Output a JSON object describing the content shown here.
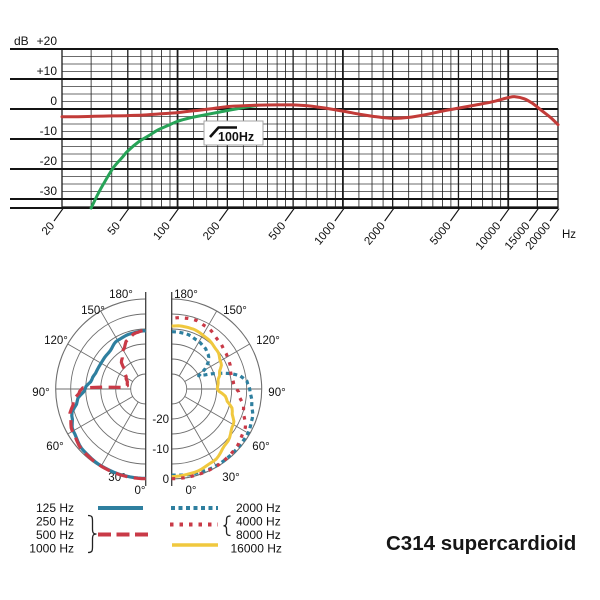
{
  "title": "C314 supercardioid",
  "freq_chart": {
    "y_axis_unit": "dB",
    "x_axis_unit": "Hz",
    "filter_annotation": "100Hz"
  },
  "polar": {
    "angle_values": [
      180,
      150,
      120,
      90,
      60,
      30,
      0
    ],
    "angle_labels": [
      "180°",
      "150°",
      "120°",
      "90°",
      "60°",
      "30°",
      "0°"
    ],
    "db_values": [
      -20,
      -10,
      0
    ],
    "db_labels": [
      "-20",
      "-10",
      "0"
    ]
  },
  "legend": {
    "groups": [
      {
        "labels": [
          "125 Hz"
        ],
        "color": "#2e7f9f",
        "dash": "solid"
      },
      {
        "labels": [
          "250 Hz",
          "500 Hz",
          "1000 Hz"
        ],
        "color": "#c93a47",
        "dash": "long-dash",
        "brace": "right"
      },
      {
        "labels": [
          "2000 Hz"
        ],
        "color": "#2e7f9f",
        "dash": "dotted"
      },
      {
        "labels": [
          "4000 Hz",
          "8000 Hz"
        ],
        "color": "#c93a47",
        "dash": "sparse-dotted",
        "brace": "left"
      },
      {
        "labels": [
          "16000 Hz"
        ],
        "color": "#f0c83e",
        "dash": "solid"
      }
    ]
  },
  "chart_data": [
    {
      "type": "line",
      "id": "frequency-response",
      "x_scale": "log",
      "xlim": [
        20,
        20000
      ],
      "ylim": [
        -33,
        20
      ],
      "xlabel": "Hz",
      "ylabel": "dB",
      "grid": true,
      "x_ticks": [
        {
          "v": 20,
          "label": "20"
        },
        {
          "v": 50,
          "label": "50"
        },
        {
          "v": 100,
          "label": "100"
        },
        {
          "v": 200,
          "label": "200"
        },
        {
          "v": 500,
          "label": "500"
        },
        {
          "v": 1000,
          "label": "1000"
        },
        {
          "v": 2000,
          "label": "2000"
        },
        {
          "v": 5000,
          "label": "5000"
        },
        {
          "v": 10000,
          "label": "10000"
        },
        {
          "v": 15000,
          "label": "15000"
        },
        {
          "v": 20000,
          "label": "20000"
        }
      ],
      "y_ticks": [
        {
          "v": 20,
          "label": "+20"
        },
        {
          "v": 10,
          "label": "+10"
        },
        {
          "v": 0,
          "label": "0"
        },
        {
          "v": -10,
          "label": "-10"
        },
        {
          "v": -20,
          "label": "-20"
        },
        {
          "v": -30,
          "label": "-30"
        }
      ],
      "annotation": {
        "text": "100Hz",
        "meaning": "bass-cut filter symbol"
      },
      "series": [
        {
          "name": "frequency response",
          "color": "#c23b38",
          "width": 3,
          "points": [
            [
              20,
              -2.6
            ],
            [
              25,
              -2.55
            ],
            [
              31.5,
              -2.45
            ],
            [
              40,
              -2.3
            ],
            [
              50,
              -2.2
            ],
            [
              63,
              -2.0
            ],
            [
              80,
              -1.6
            ],
            [
              100,
              -1.2
            ],
            [
              125,
              -0.6
            ],
            [
              160,
              0.1
            ],
            [
              200,
              0.8
            ],
            [
              250,
              1.1
            ],
            [
              315,
              1.3
            ],
            [
              400,
              1.35
            ],
            [
              500,
              1.35
            ],
            [
              630,
              1.0
            ],
            [
              800,
              0.2
            ],
            [
              1000,
              -0.7
            ],
            [
              1250,
              -1.7
            ],
            [
              1600,
              -2.6
            ],
            [
              2000,
              -3.1
            ],
            [
              2500,
              -2.8
            ],
            [
              3150,
              -1.9
            ],
            [
              4000,
              -0.7
            ],
            [
              5000,
              0.3
            ],
            [
              6300,
              1.3
            ],
            [
              8000,
              2.4
            ],
            [
              10000,
              3.8
            ],
            [
              11000,
              4.1
            ],
            [
              12500,
              3.4
            ],
            [
              14000,
              1.9
            ],
            [
              16000,
              -0.6
            ],
            [
              18000,
              -2.8
            ],
            [
              20000,
              -5.2
            ]
          ]
        },
        {
          "name": "bass-cut filter engaged",
          "color": "#27a357",
          "width": 3,
          "points": [
            [
              30,
              -33
            ],
            [
              33,
              -28.3
            ],
            [
              36.5,
              -24
            ],
            [
              41,
              -19.5
            ],
            [
              46.5,
              -16
            ],
            [
              50,
              -14
            ],
            [
              58,
              -11
            ],
            [
              67,
              -8.9
            ],
            [
              76,
              -7
            ],
            [
              90,
              -5.2
            ],
            [
              100,
              -4.1
            ],
            [
              118,
              -3
            ],
            [
              148,
              -1.9
            ],
            [
              180,
              -1.0
            ],
            [
              210,
              -0.3
            ],
            [
              240,
              0.3
            ],
            [
              270,
              0.8
            ],
            [
              300,
              1.1
            ]
          ]
        }
      ]
    },
    {
      "type": "polar-half",
      "id": "polar-low-frequencies",
      "side": "left",
      "rings_db": [
        0,
        -5,
        -10,
        -15,
        -20,
        -25
      ],
      "angle_ticks_deg": [
        0,
        30,
        60,
        90,
        120,
        150,
        180
      ],
      "series": [
        {
          "name": "125 Hz",
          "color": "#2e7f9f",
          "dash": null,
          "width": 3.2,
          "points": [
            [
              0,
              -0.2
            ],
            [
              15,
              -0.25
            ],
            [
              30,
              -0.4
            ],
            [
              45,
              -0.8
            ],
            [
              60,
              -2.1
            ],
            [
              70,
              -3.8
            ],
            [
              80,
              -6.8
            ],
            [
              90,
              -9.8
            ],
            [
              100,
              -11.8
            ],
            [
              110,
              -12.6
            ],
            [
              120,
              -12.8
            ],
            [
              135,
              -12.7
            ],
            [
              150,
              -11.3
            ],
            [
              165,
              -10.9
            ],
            [
              180,
              -10.6
            ]
          ]
        },
        {
          "name": "250/500/1000 Hz",
          "color": "#c93a47",
          "dash": [
            12,
            6.5
          ],
          "width": 3.2,
          "points": [
            [
              0,
              -0.1
            ],
            [
              15,
              -0.15
            ],
            [
              30,
              -0.3
            ],
            [
              45,
              -0.6
            ],
            [
              60,
              -1.8
            ],
            [
              70,
              -3.2
            ],
            [
              80,
              -5.5
            ],
            [
              88,
              -8.0
            ],
            [
              91,
              -9.0
            ],
            [
              94,
              -22.5
            ],
            [
              100,
              -23.8
            ],
            [
              110,
              -23.5
            ],
            [
              120,
              -22.5
            ],
            [
              130,
              -21
            ],
            [
              140,
              -17.5
            ],
            [
              150,
              -15
            ],
            [
              160,
              -12.5
            ],
            [
              170,
              -11
            ],
            [
              180,
              -10.3
            ]
          ]
        }
      ]
    },
    {
      "type": "polar-half",
      "id": "polar-high-frequencies",
      "side": "right",
      "rings_db": [
        0,
        -5,
        -10,
        -15,
        -20,
        -25
      ],
      "angle_ticks_deg": [
        0,
        30,
        60,
        90,
        120,
        150,
        180
      ],
      "series": [
        {
          "name": "2000 Hz",
          "color": "#2e7f9f",
          "dash": [
            4,
            3.5
          ],
          "width": 3.2,
          "points": [
            [
              0,
              -1.3
            ],
            [
              15,
              -0.8
            ],
            [
              30,
              -0.4
            ],
            [
              45,
              -0.5
            ],
            [
              60,
              -0.6
            ],
            [
              70,
              -1.4
            ],
            [
              80,
              -2.9
            ],
            [
              90,
              -4.0
            ],
            [
              96,
              -4.8
            ],
            [
              101,
              -6.8
            ],
            [
              105,
              -10
            ],
            [
              109,
              -14
            ],
            [
              113,
              -18
            ],
            [
              116,
              -20
            ],
            [
              121,
              -17
            ],
            [
              126,
              -15
            ],
            [
              133,
              -13.3
            ],
            [
              142,
              -12.3
            ],
            [
              152,
              -11.7
            ],
            [
              165,
              -11
            ],
            [
              180,
              -10.9
            ]
          ]
        },
        {
          "name": "16000 Hz",
          "color": "#f0c83e",
          "dash": null,
          "width": 3,
          "points": [
            [
              0,
              -0.8
            ],
            [
              15,
              -1.2
            ],
            [
              30,
              -2.2
            ],
            [
              45,
              -4.3
            ],
            [
              60,
              -6.3
            ],
            [
              70,
              -8.5
            ],
            [
              80,
              -11.5
            ],
            [
              90,
              -14.8
            ],
            [
              100,
              -14.3
            ],
            [
              108,
              -13.2
            ],
            [
              118,
              -11.4
            ],
            [
              130,
              -10.2
            ],
            [
              145,
              -9.4
            ],
            [
              160,
              -8.8
            ],
            [
              172,
              -8.8
            ],
            [
              180,
              -9.0
            ]
          ]
        },
        {
          "name": "4000/8000 Hz",
          "color": "#c93a47",
          "dash": [
            3.5,
            6
          ],
          "width": 3.2,
          "points": [
            [
              0,
              -0.1
            ],
            [
              15,
              -0.15
            ],
            [
              30,
              -0.25
            ],
            [
              45,
              -0.8
            ],
            [
              60,
              -2.1
            ],
            [
              75,
              -5.2
            ],
            [
              85,
              -7.4
            ],
            [
              95,
              -9.3
            ],
            [
              105,
              -9.6
            ],
            [
              115,
              -8.8
            ],
            [
              125,
              -8.3
            ],
            [
              135,
              -7.6
            ],
            [
              150,
              -6.3
            ],
            [
              162,
              -5.7
            ],
            [
              172,
              -6.0
            ],
            [
              180,
              -6.4
            ]
          ]
        }
      ]
    }
  ]
}
